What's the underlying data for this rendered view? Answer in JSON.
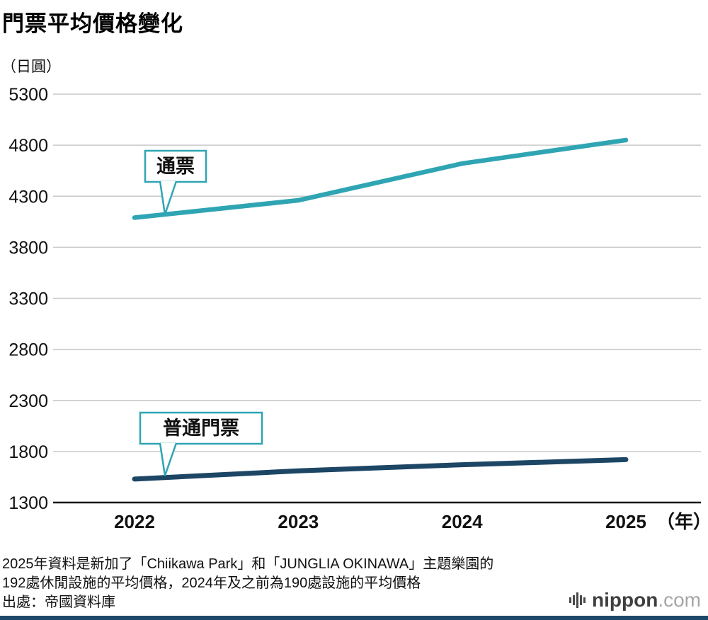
{
  "title": "門票平均價格變化",
  "unit_label": "（日圓）",
  "chart_data": {
    "type": "line",
    "x": [
      2022,
      2023,
      2024,
      2025
    ],
    "x_axis_suffix": "（年）",
    "yticks": [
      5300,
      4800,
      4300,
      3800,
      3300,
      2800,
      2300,
      1800,
      1300
    ],
    "ylim": [
      1300,
      5300
    ],
    "grid": true,
    "legend_position": "callouts-on-plot",
    "series": [
      {
        "key": "pass",
        "name": "通票",
        "color": "#2fa5b3",
        "values": [
          4090,
          4260,
          4620,
          4850
        ]
      },
      {
        "key": "regular",
        "name": "普通門票",
        "color": "#1d4665",
        "values": [
          1530,
          1610,
          1670,
          1720
        ]
      }
    ]
  },
  "footnotes": [
    "2025年資料是新加了「Chiikawa Park」和「JUNGLIA OKINAWA」主題樂園的",
    "192處休閒設施的平均價格，2024年及之前為190處設施的平均價格"
  ],
  "source": "出處：帝國資料庫",
  "branding": {
    "logo_icon": "soundwave-icon",
    "logo_text": "nippon",
    "logo_suffix": ".com"
  },
  "colors": {
    "teal": "#2fa5b3",
    "navy": "#1d4665",
    "grid": "#c9c9c9",
    "axis": "#111111",
    "text": "#111111",
    "bottom_bar": "#1d4868",
    "logo_dark": "#3f3f3f",
    "logo_light": "#a6a6a6"
  }
}
